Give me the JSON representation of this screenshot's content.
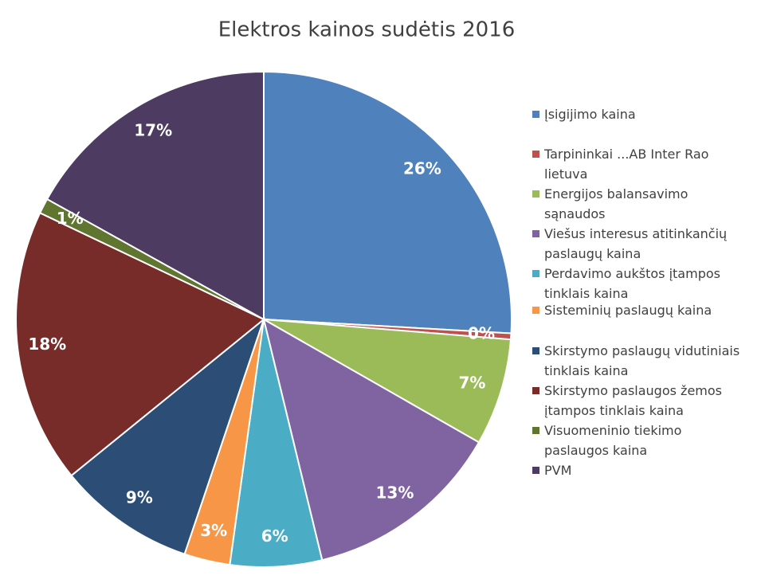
{
  "chart_data": {
    "type": "pie",
    "title": "Elektros kainos sudėtis 2016",
    "categories": [
      "Įsigijimo kaina",
      "Tarpininkai ...AB Inter Rao lietuva",
      "Energijos balansavimo sąnaudos",
      "Viešus interesus atitinkančių paslaugų kaina",
      "Perdavimo aukštos įtampos tinklais kaina",
      "Sisteminių paslaugų kaina",
      "Skirstymo paslaugų vidutiniais tinklais kaina",
      "Skirstymo paslaugos žemos įtampos tinklais kaina",
      "Visuomeninio tiekimo paslaugos kaina",
      "PVM"
    ],
    "values": [
      26,
      0.4,
      7,
      13,
      6,
      3,
      9,
      18,
      1,
      17
    ],
    "value_labels": [
      "26%",
      "0%",
      "7%",
      "13%",
      "6%",
      "3%",
      "9%",
      "18%",
      "1%",
      "17%"
    ],
    "colors": [
      "#4f81bd",
      "#c0504d",
      "#9bbb59",
      "#8064a2",
      "#4bacc6",
      "#f79646",
      "#2c4d75",
      "#772c2a",
      "#5f7530",
      "#4d3b62"
    ],
    "legend": "right"
  }
}
